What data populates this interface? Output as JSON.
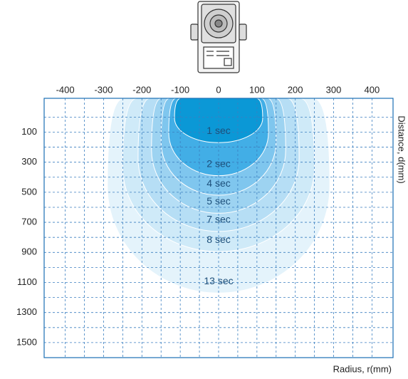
{
  "chart_data": {
    "type": "discharge-zones",
    "x_label": "Radius, r(mm)",
    "y_label": "Distance, d(mm)",
    "xlim": [
      -455,
      455
    ],
    "ylim": [
      -125,
      1600
    ],
    "xticks": [
      -400,
      -300,
      -200,
      -100,
      0,
      100,
      200,
      300,
      400
    ],
    "yticks": [
      100,
      300,
      500,
      700,
      900,
      1100,
      1300,
      1500
    ],
    "y_inverted": true,
    "grid": true,
    "series": [
      {
        "name": "13 sec",
        "color": "#e4f3fb",
        "radius": 290,
        "distance": 1170
      },
      {
        "name": "8 sec",
        "color": "#cfeaf8",
        "radius": 250,
        "distance": 895
      },
      {
        "name": "7 sec",
        "color": "#b6def5",
        "radius": 210,
        "distance": 760
      },
      {
        "name": "5 sec",
        "color": "#9dd3f1",
        "radius": 175,
        "distance": 640
      },
      {
        "name": "4 sec",
        "color": "#7fc6ee",
        "radius": 150,
        "distance": 520
      },
      {
        "name": "2 sec",
        "color": "#42aee6",
        "radius": 130,
        "distance": 390
      },
      {
        "name": "1 sec",
        "color": "#0b98d6",
        "radius": 115,
        "distance": 170
      }
    ]
  }
}
